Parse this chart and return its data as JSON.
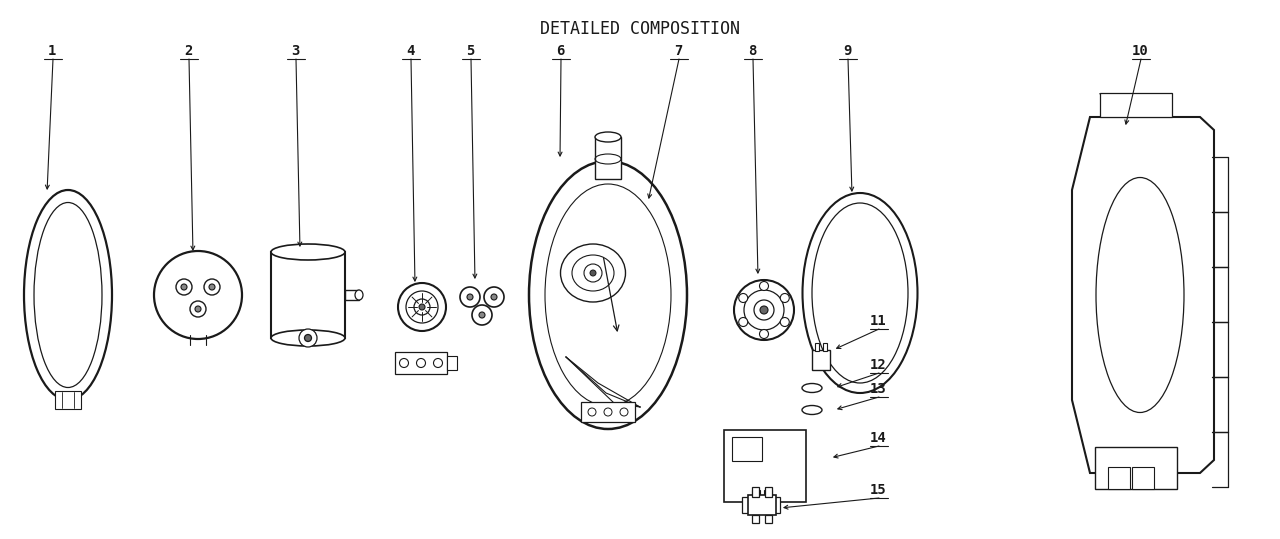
{
  "title": "DETAILED COMPOSITION",
  "background_color": "#ffffff",
  "line_color": "#1a1a1a",
  "lw": 1.2,
  "title_fontsize": 12,
  "label_fontsize": 10
}
